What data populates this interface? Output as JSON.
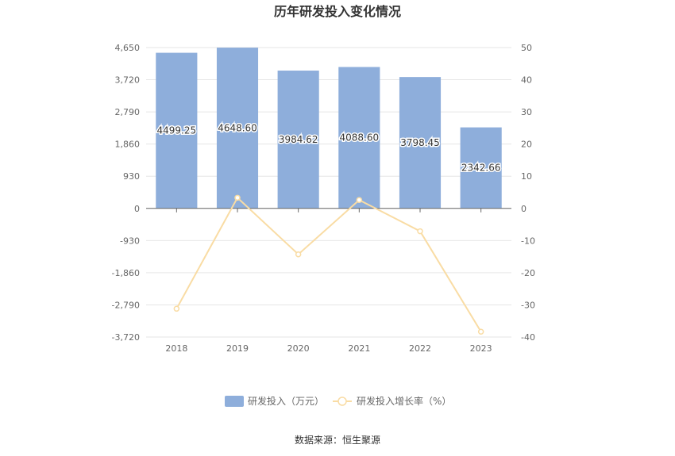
{
  "chart_data": {
    "type": "bar+line",
    "title": "历年研发投入变化情况",
    "categories": [
      "2018",
      "2019",
      "2020",
      "2021",
      "2022",
      "2023"
    ],
    "series": [
      {
        "name": "研发投入（万元）",
        "type": "bar",
        "axis": "left",
        "color": "#8eaedb",
        "values": [
          4499.25,
          4648.6,
          3984.62,
          4088.6,
          3798.45,
          2342.66
        ],
        "labels": [
          "4499.25",
          "4648.60",
          "3984.62",
          "4088.60",
          "3798.45",
          "2342.66"
        ]
      },
      {
        "name": "研发投入增长率（%）",
        "type": "line",
        "axis": "right",
        "color": "#f9dca4",
        "values": [
          -31.2,
          3.32,
          -14.28,
          2.61,
          -7.1,
          -38.33
        ]
      }
    ],
    "y_left": {
      "ticks": [
        4650,
        3720,
        2790,
        1860,
        930,
        0,
        -930,
        -1860,
        -2790,
        -3720
      ],
      "tick_labels": [
        "4,650",
        "3,720",
        "2,790",
        "1,860",
        "930",
        "0",
        "-930",
        "-1,860",
        "-2,790",
        "-3,720"
      ],
      "ylim": [
        -3720,
        4650
      ]
    },
    "y_right": {
      "ticks": [
        50,
        40,
        30,
        20,
        10,
        0,
        -10,
        -20,
        -30,
        -40
      ],
      "tick_labels": [
        "50",
        "40",
        "30",
        "20",
        "10",
        "0",
        "-10",
        "-20",
        "-30",
        "-40"
      ],
      "ylim": [
        -40,
        50
      ]
    },
    "grid": true,
    "legend_position": "bottom-center"
  },
  "footer": {
    "source": "数据来源：恒生聚源"
  }
}
